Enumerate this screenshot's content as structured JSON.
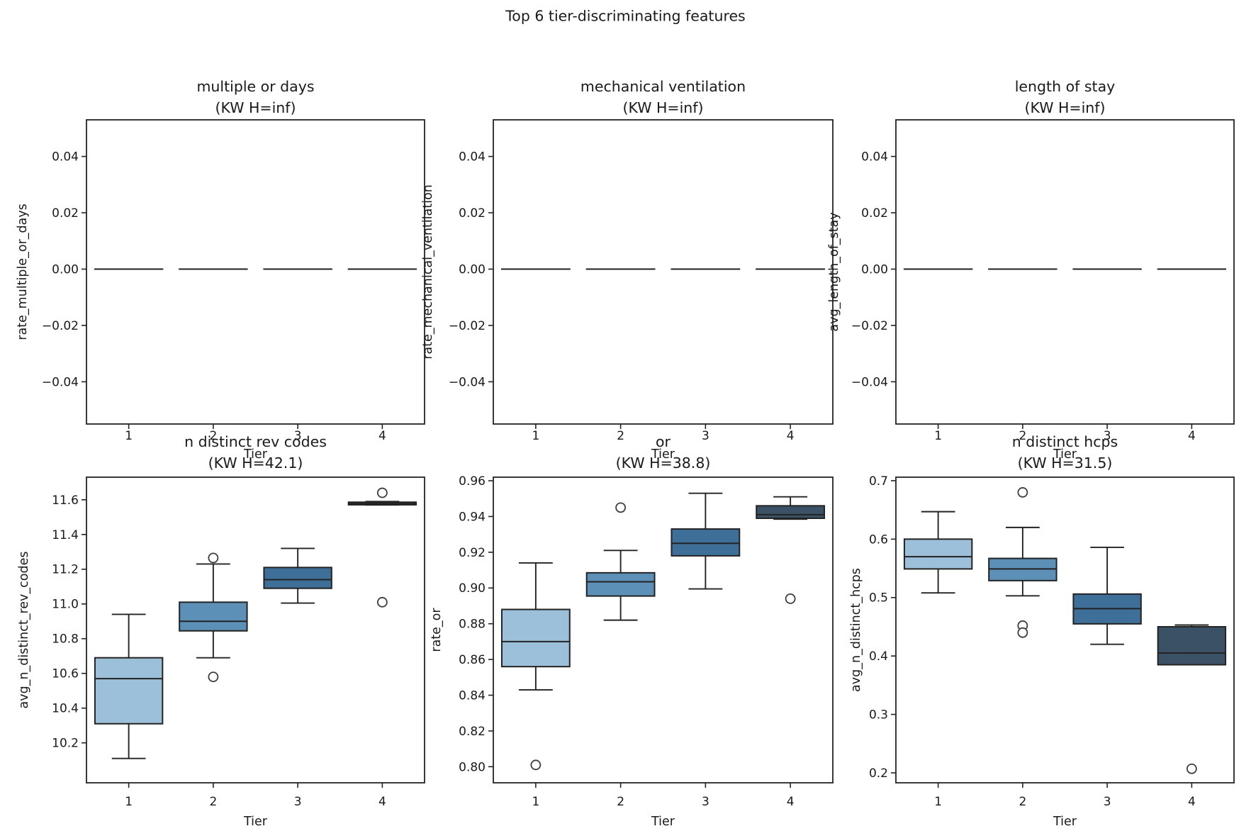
{
  "figure": {
    "suptitle": "Top 6 tier-discriminating features",
    "colors": {
      "box_fills": [
        "#9CC0DA",
        "#5C90B7",
        "#3E6F98",
        "#3B5266"
      ],
      "edge": "#232323",
      "flier_edge": "#3d3d3d",
      "text": "#1a1a1a",
      "background": "#ffffff"
    }
  },
  "chart_data": [
    {
      "type": "box",
      "title": "multiple or days",
      "subtitle": "(KW H=inf)",
      "xlabel": "Tier",
      "ylabel": "rate_multiple_or_days",
      "categories": [
        "1",
        "2",
        "3",
        "4"
      ],
      "ylim": [
        -0.055,
        0.053
      ],
      "grid": false,
      "yticks": [
        {
          "v": 0.04,
          "label": "0.04"
        },
        {
          "v": 0.02,
          "label": "0.02"
        },
        {
          "v": 0.0,
          "label": "0.00"
        },
        {
          "v": -0.02,
          "label": "−0.02"
        },
        {
          "v": -0.04,
          "label": "−0.04"
        }
      ],
      "boxes": [
        {
          "tier": "1",
          "lo": 0.0,
          "q1": 0.0,
          "med": 0.0,
          "q3": 0.0,
          "hi": 0.0,
          "outliers": []
        },
        {
          "tier": "2",
          "lo": 0.0,
          "q1": 0.0,
          "med": 0.0,
          "q3": 0.0,
          "hi": 0.0,
          "outliers": []
        },
        {
          "tier": "3",
          "lo": 0.0,
          "q1": 0.0,
          "med": 0.0,
          "q3": 0.0,
          "hi": 0.0,
          "outliers": []
        },
        {
          "tier": "4",
          "lo": 0.0,
          "q1": 0.0,
          "med": 0.0,
          "q3": 0.0,
          "hi": 0.0,
          "outliers": []
        }
      ]
    },
    {
      "type": "box",
      "title": "mechanical ventilation",
      "subtitle": "(KW H=inf)",
      "xlabel": "Tier",
      "ylabel": "rate_mechanical_ventilation",
      "categories": [
        "1",
        "2",
        "3",
        "4"
      ],
      "ylim": [
        -0.055,
        0.053
      ],
      "grid": false,
      "yticks": [
        {
          "v": 0.04,
          "label": "0.04"
        },
        {
          "v": 0.02,
          "label": "0.02"
        },
        {
          "v": 0.0,
          "label": "0.00"
        },
        {
          "v": -0.02,
          "label": "−0.02"
        },
        {
          "v": -0.04,
          "label": "−0.04"
        }
      ],
      "boxes": [
        {
          "tier": "1",
          "lo": 0.0,
          "q1": 0.0,
          "med": 0.0,
          "q3": 0.0,
          "hi": 0.0,
          "outliers": []
        },
        {
          "tier": "2",
          "lo": 0.0,
          "q1": 0.0,
          "med": 0.0,
          "q3": 0.0,
          "hi": 0.0,
          "outliers": []
        },
        {
          "tier": "3",
          "lo": 0.0,
          "q1": 0.0,
          "med": 0.0,
          "q3": 0.0,
          "hi": 0.0,
          "outliers": []
        },
        {
          "tier": "4",
          "lo": 0.0,
          "q1": 0.0,
          "med": 0.0,
          "q3": 0.0,
          "hi": 0.0,
          "outliers": []
        }
      ]
    },
    {
      "type": "box",
      "title": "length of stay",
      "subtitle": "(KW H=inf)",
      "xlabel": "Tier",
      "ylabel": "avg_length_of_stay",
      "categories": [
        "1",
        "2",
        "3",
        "4"
      ],
      "ylim": [
        -0.055,
        0.053
      ],
      "grid": false,
      "yticks": [
        {
          "v": 0.04,
          "label": "0.04"
        },
        {
          "v": 0.02,
          "label": "0.02"
        },
        {
          "v": 0.0,
          "label": "0.00"
        },
        {
          "v": -0.02,
          "label": "−0.02"
        },
        {
          "v": -0.04,
          "label": "−0.04"
        }
      ],
      "boxes": [
        {
          "tier": "1",
          "lo": 0.0,
          "q1": 0.0,
          "med": 0.0,
          "q3": 0.0,
          "hi": 0.0,
          "outliers": []
        },
        {
          "tier": "2",
          "lo": 0.0,
          "q1": 0.0,
          "med": 0.0,
          "q3": 0.0,
          "hi": 0.0,
          "outliers": []
        },
        {
          "tier": "3",
          "lo": 0.0,
          "q1": 0.0,
          "med": 0.0,
          "q3": 0.0,
          "hi": 0.0,
          "outliers": []
        },
        {
          "tier": "4",
          "lo": 0.0,
          "q1": 0.0,
          "med": 0.0,
          "q3": 0.0,
          "hi": 0.0,
          "outliers": []
        }
      ]
    },
    {
      "type": "box",
      "title": "n distinct rev codes",
      "subtitle": "(KW H=42.1)",
      "xlabel": "Tier",
      "ylabel": "avg_n_distinct_rev_codes",
      "categories": [
        "1",
        "2",
        "3",
        "4"
      ],
      "ylim": [
        9.97,
        11.73
      ],
      "grid": false,
      "yticks": [
        {
          "v": 11.6,
          "label": "11.6"
        },
        {
          "v": 11.4,
          "label": "11.4"
        },
        {
          "v": 11.2,
          "label": "11.2"
        },
        {
          "v": 11.0,
          "label": "11.0"
        },
        {
          "v": 10.8,
          "label": "10.8"
        },
        {
          "v": 10.6,
          "label": "10.6"
        },
        {
          "v": 10.4,
          "label": "10.4"
        },
        {
          "v": 10.2,
          "label": "10.2"
        }
      ],
      "boxes": [
        {
          "tier": "1",
          "lo": 10.11,
          "q1": 10.31,
          "med": 10.57,
          "q3": 10.69,
          "hi": 10.94,
          "outliers": []
        },
        {
          "tier": "2",
          "lo": 10.69,
          "q1": 10.845,
          "med": 10.9,
          "q3": 11.01,
          "hi": 11.23,
          "outliers": [
            11.265,
            10.58
          ]
        },
        {
          "tier": "3",
          "lo": 11.005,
          "q1": 11.09,
          "med": 11.14,
          "q3": 11.21,
          "hi": 11.32,
          "outliers": []
        },
        {
          "tier": "4",
          "lo": 11.57,
          "q1": 11.571,
          "med": 11.578,
          "q3": 11.586,
          "hi": 11.59,
          "outliers": [
            11.64,
            11.01
          ]
        }
      ]
    },
    {
      "type": "box",
      "title": "or",
      "subtitle": "(KW H=38.8)",
      "xlabel": "Tier",
      "ylabel": "rate_or",
      "categories": [
        "1",
        "2",
        "3",
        "4"
      ],
      "ylim": [
        0.791,
        0.962
      ],
      "grid": false,
      "yticks": [
        {
          "v": 0.96,
          "label": "0.96"
        },
        {
          "v": 0.94,
          "label": "0.94"
        },
        {
          "v": 0.92,
          "label": "0.92"
        },
        {
          "v": 0.9,
          "label": "0.90"
        },
        {
          "v": 0.88,
          "label": "0.88"
        },
        {
          "v": 0.86,
          "label": "0.86"
        },
        {
          "v": 0.84,
          "label": "0.84"
        },
        {
          "v": 0.82,
          "label": "0.82"
        },
        {
          "v": 0.8,
          "label": "0.80"
        }
      ],
      "boxes": [
        {
          "tier": "1",
          "lo": 0.843,
          "q1": 0.856,
          "med": 0.87,
          "q3": 0.888,
          "hi": 0.914,
          "outliers": [
            0.801
          ]
        },
        {
          "tier": "2",
          "lo": 0.882,
          "q1": 0.8955,
          "med": 0.9035,
          "q3": 0.9085,
          "hi": 0.921,
          "outliers": [
            0.945
          ]
        },
        {
          "tier": "3",
          "lo": 0.8995,
          "q1": 0.918,
          "med": 0.925,
          "q3": 0.933,
          "hi": 0.953,
          "outliers": []
        },
        {
          "tier": "4",
          "lo": 0.9385,
          "q1": 0.939,
          "med": 0.941,
          "q3": 0.946,
          "hi": 0.951,
          "outliers": [
            0.894
          ]
        }
      ]
    },
    {
      "type": "box",
      "title": "n distinct hcps",
      "subtitle": "(KW H=31.5)",
      "xlabel": "Tier",
      "ylabel": "avg_n_distinct_hcps",
      "categories": [
        "1",
        "2",
        "3",
        "4"
      ],
      "ylim": [
        0.183,
        0.706
      ],
      "grid": false,
      "yticks": [
        {
          "v": 0.7,
          "label": "0.7"
        },
        {
          "v": 0.6,
          "label": "0.6"
        },
        {
          "v": 0.5,
          "label": "0.5"
        },
        {
          "v": 0.4,
          "label": "0.4"
        },
        {
          "v": 0.3,
          "label": "0.3"
        },
        {
          "v": 0.2,
          "label": "0.2"
        }
      ],
      "boxes": [
        {
          "tier": "1",
          "lo": 0.508,
          "q1": 0.549,
          "med": 0.57,
          "q3": 0.6,
          "hi": 0.647,
          "outliers": []
        },
        {
          "tier": "2",
          "lo": 0.503,
          "q1": 0.529,
          "med": 0.549,
          "q3": 0.567,
          "hi": 0.62,
          "outliers": [
            0.68,
            0.452,
            0.44
          ]
        },
        {
          "tier": "3",
          "lo": 0.42,
          "q1": 0.455,
          "med": 0.481,
          "q3": 0.506,
          "hi": 0.586,
          "outliers": []
        },
        {
          "tier": "4",
          "lo": 0.385,
          "q1": 0.385,
          "med": 0.405,
          "q3": 0.45,
          "hi": 0.453,
          "outliers": [
            0.207
          ]
        }
      ]
    }
  ]
}
